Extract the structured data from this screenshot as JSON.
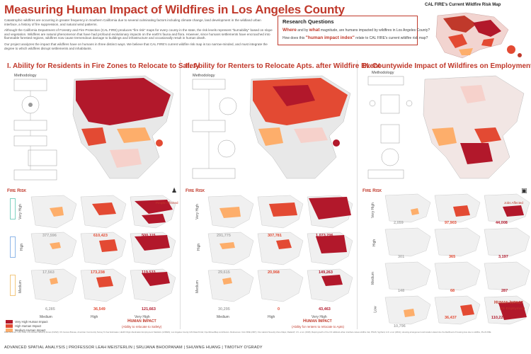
{
  "header": {
    "title": "Measuring Human Impact of Wildfires in Los Angeles County",
    "intro_p1": "Catastrophic wildfires are occurring in greater frequency in Southern California due to several culminating factors including climate change, land development in the wildland urban interface, a history of fire suppression, and natural wind patterns.",
    "intro_p2": "Although the California Department of Forestry and Fire Protection (CAL FIRE) produces \"fire risk\" maps for every county in the state, the risk levels represent \"burnability\" based on slope and vegetation. Wildfires are natural phenomenon that have had profound evolutionary impacts on the earth's fauna and flora. However, since humans settlements have encroached into flammable forested regions, wildfires now cause tremendous damage to buildings and infrastructure and occasionally result in human death.",
    "intro_p3": "Our project analyzes the impact that wildfires have on humans in three distinct ways. We believe that CAL FIRE's current wildfire risk map is too narrow-minded, and must integrate the degree to which wildfires disrupt settlements and inhabitants."
  },
  "research": {
    "title": "Research Questions",
    "q1_em1": "Where",
    "q1_mid": " and by ",
    "q1_em2": "what",
    "q1_rest": " magnitude, are humans impacted by wildfires in Los Angeles County?",
    "q2_pre": "How does this ",
    "q2_em": "\"human impact index\"",
    "q2_rest": " relate to CAL FIRE's current wildfire risk map?"
  },
  "riskmap": {
    "title": "CAL FIRE's Current Wildfire Risk Map"
  },
  "sections": [
    {
      "title": "I. Ability for Residents in Fire Zones to Relocate to Safety",
      "methodology": "Methodology",
      "impact_label": "Human Impact",
      "impact_sub": "(Ability to relocate to Safety)",
      "unit_label": "People Affected",
      "grid": [
        [
          "",
          "610,423",
          "500,115"
        ],
        [
          "17,563",
          "173,238",
          "119,533"
        ],
        [
          "6,285",
          "36,549",
          "121,663"
        ]
      ],
      "grid_lead": [
        "377,596",
        "",
        ""
      ]
    },
    {
      "title": "II. Ability for Renters to Relocate Apts. after Wildfire Event",
      "methodology": "Methodology",
      "impact_label": "Human Impact",
      "impact_sub": "(Ability for renters to relocate to Apts)",
      "unit_label": "",
      "grid": [
        [
          "291,775",
          "307,781",
          "1,073,706"
        ],
        [
          "29,615",
          "20,968",
          "149,263"
        ],
        [
          "30,295",
          "0",
          "43,463"
        ]
      ]
    },
    {
      "title": "III. Countywide Impact of Wildfires on Employment",
      "methodology": "Methodology",
      "impact_label": "Human Impact",
      "impact_sub": "(On Employment)",
      "unit_label": "Jobs Affected",
      "grid": [
        [
          "2,059",
          "97,903",
          "44,008"
        ],
        [
          "301",
          "365",
          "3,197"
        ],
        [
          "148",
          "68",
          "287"
        ],
        [
          "10,796",
          "36,437",
          "110,220"
        ]
      ]
    }
  ],
  "matrix": {
    "fire_risk_label": "Fire Risk",
    "rows": [
      "Very High",
      "High",
      "Medium"
    ],
    "rows_s3": [
      "Very High",
      "High",
      "Medium",
      "Low"
    ],
    "cols": [
      "Medium",
      "High",
      "Very High"
    ]
  },
  "legend": {
    "items": [
      "Very High Human Impact",
      "High Human Impact",
      "Medium Human Impact"
    ]
  },
  "refs": "Data Sources: CAL FIRE. Fire Hazard Severity Zones (FHSZ); US Census Bureau, American Community Survey 5-Year Estimates; LEHD Origin-Destination Employment Statistics (LODES); Los Angeles County GIS Data Portal; OpenStreetMap contributors. References: CAL FIRE (2007), Fire Hazard Severity Zone Maps; Radeloff, V.C. et al. (2018), Rapid growth of the US wildland-urban interface raises wildfire risk, PNAS; Syphard, A.D. et al. (2012), Housing arrangement and location determine the likelihood of housing loss due to wildfire, PLoS ONE.",
  "footer": "ADVANCED SPATIAL ANALYSIS | PROFESSOR LEAH MEISTERLIN | SRUJANA BHOOPANAM | SHUWNG HUANG | TIMOTHY O'GRADY",
  "colors": {
    "accent": "#c0392b",
    "very_high": "#b2182b",
    "high": "#e34a33",
    "medium": "#fdae6b",
    "map_base": "#e8e8e8"
  }
}
